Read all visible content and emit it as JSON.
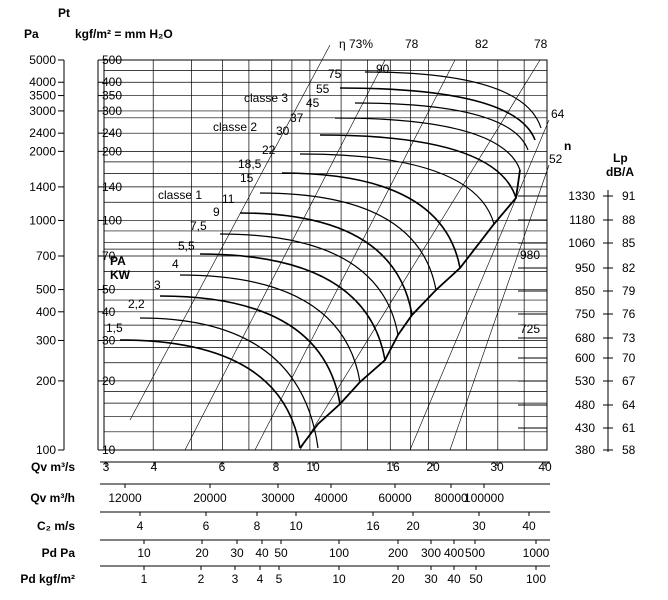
{
  "chart_data": {
    "type": "line",
    "title": "",
    "ylabel": "Pt",
    "units": {
      "pa": "Pa",
      "kgf": "kgf/m² = mm H₂O",
      "n": "n",
      "lp": "Lp",
      "lp_unit": "dB/A"
    },
    "y_scale": "log",
    "pa_ticks": [
      100,
      200,
      300,
      400,
      500,
      700,
      1000,
      1400,
      2000,
      2400,
      3000,
      3500,
      4000,
      5000
    ],
    "kgf_ticks": [
      10,
      20,
      30,
      40,
      50,
      70,
      100,
      140,
      200,
      240,
      300,
      350,
      400,
      500
    ],
    "ylim_pa": [
      100,
      5000
    ],
    "x_scale": "log",
    "x_axes": [
      {
        "label": "Qv m³/s",
        "ticks": [
          3,
          4,
          6,
          8,
          10,
          16,
          20,
          30,
          40
        ]
      },
      {
        "label": "Qv m³/h",
        "ticks": [
          12000,
          20000,
          30000,
          40000,
          60000,
          80000,
          100000
        ]
      },
      {
        "label": "C₂ m/s",
        "ticks": [
          4,
          6,
          8,
          10,
          16,
          20,
          30,
          40
        ]
      },
      {
        "label": "Pd Pa",
        "ticks": [
          10,
          20,
          30,
          40,
          50,
          100,
          200,
          300,
          400,
          500,
          1000
        ]
      },
      {
        "label": "Pd kgf/m²",
        "ticks": [
          1,
          2,
          3,
          4,
          5,
          10,
          20,
          30,
          40,
          50,
          100
        ]
      }
    ],
    "xlim_q": [
      3,
      40
    ],
    "speeds": [
      {
        "n": "1330",
        "lp": "91"
      },
      {
        "n": "1180",
        "lp": "88"
      },
      {
        "n": "1060",
        "lp": "85"
      },
      {
        "n": "950",
        "lp": "82"
      },
      {
        "n": "850",
        "lp": "79"
      },
      {
        "n": "750",
        "lp": "76"
      },
      {
        "n": "680",
        "lp": "73"
      },
      {
        "n": "600",
        "lp": "70"
      },
      {
        "n": "530",
        "lp": "67"
      },
      {
        "n": "480",
        "lp": "64"
      },
      {
        "n": "430",
        "lp": "61"
      },
      {
        "n": "380",
        "lp": "58"
      }
    ],
    "extra_speed_labels": [
      "980",
      "725"
    ],
    "power_labels": [
      "1,5",
      "2,2",
      "3",
      "4",
      "5,5",
      "7,5",
      "9",
      "11",
      "15",
      "18,5",
      "22",
      "30",
      "37",
      "45",
      "55",
      "75",
      "90"
    ],
    "efficiency_labels": [
      "η 73%",
      "78",
      "82",
      "78",
      "64",
      "52"
    ],
    "class_labels": [
      "classe 1",
      "classe 2",
      "classe 3"
    ],
    "pa_kw_labels": [
      "PA",
      "KW"
    ]
  }
}
